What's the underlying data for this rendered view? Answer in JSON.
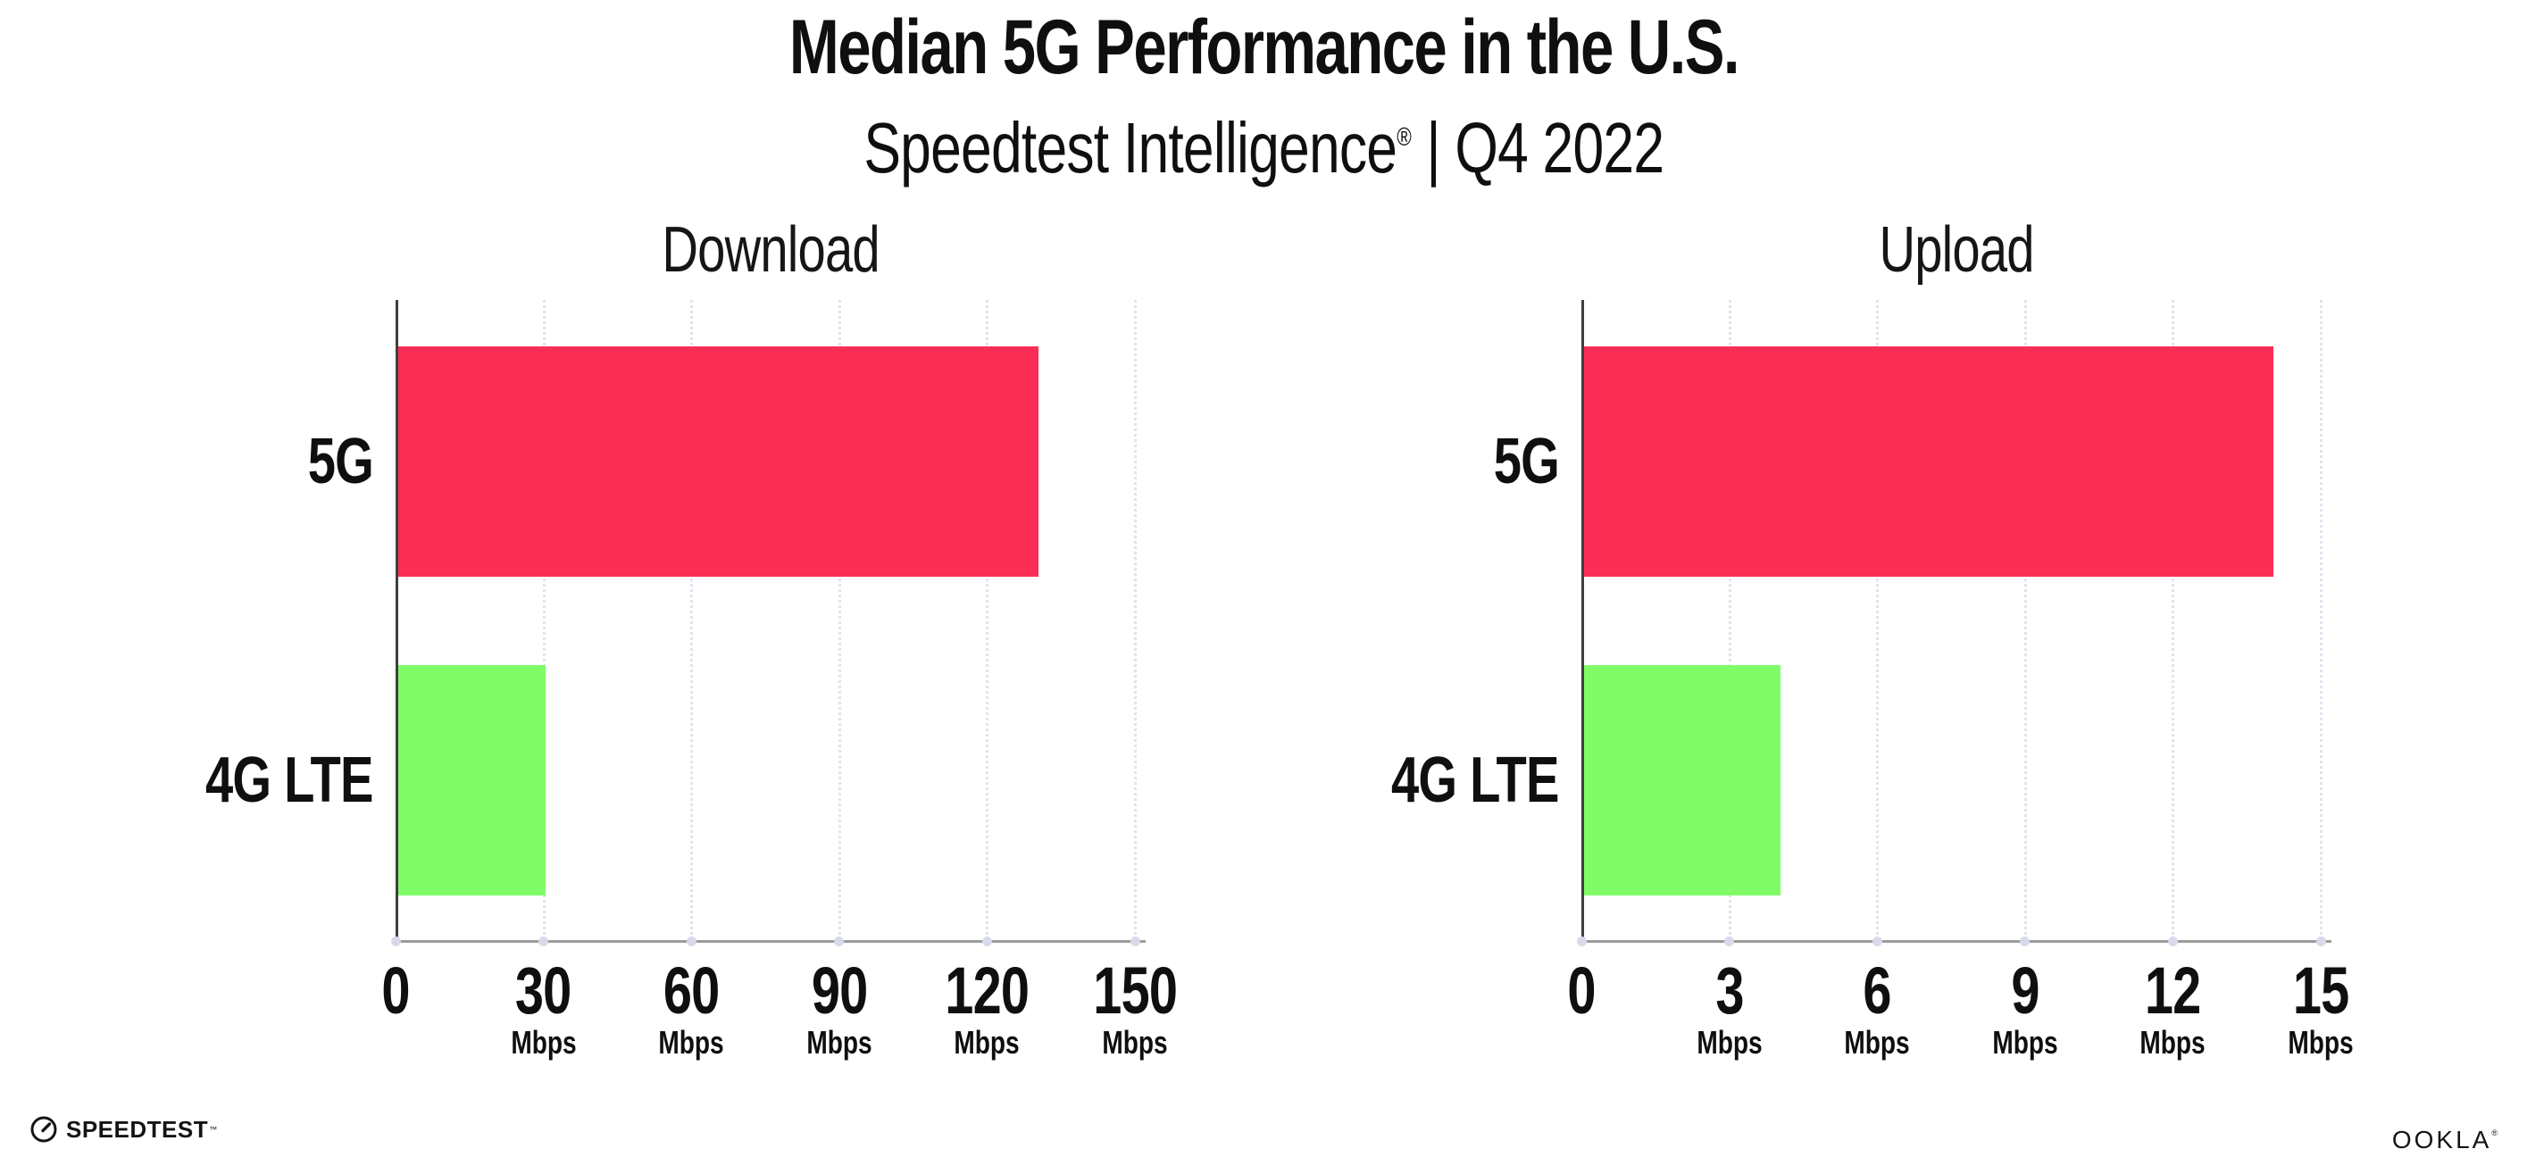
{
  "header": {
    "title": "Median 5G Performance in the U.S.",
    "subtitle_brand": "Speedtest Intelligence",
    "subtitle_reg": "®",
    "subtitle_rest": " | Q4 2022"
  },
  "colors": {
    "bar_5g": "#FC2D55",
    "bar_4g_lte": "#80FC66",
    "gridline": "#E2E3F0",
    "x_axis_line": "#9B9B9B",
    "y_axis_line": "#3F3F3F",
    "tick_dot": "#D8DAEB",
    "text": "#0F0F0F"
  },
  "chart_data": [
    {
      "type": "bar",
      "orientation": "horizontal",
      "title": "Download",
      "categories": [
        "5G",
        "4G LTE"
      ],
      "values": [
        130,
        30
      ],
      "unit": "Mbps",
      "xlim": [
        0,
        150
      ],
      "ticks": [
        0,
        30,
        60,
        90,
        120,
        150
      ],
      "tick_unit_label": "Mbps",
      "bar_colors": [
        "#FC2D55",
        "#80FC66"
      ],
      "grid": "vertical-dotted",
      "legend": "none"
    },
    {
      "type": "bar",
      "orientation": "horizontal",
      "title": "Upload",
      "categories": [
        "5G",
        "4G LTE"
      ],
      "values": [
        14,
        4
      ],
      "unit": "Mbps",
      "xlim": [
        0,
        15
      ],
      "ticks": [
        0,
        3,
        6,
        9,
        12,
        15
      ],
      "tick_unit_label": "Mbps",
      "bar_colors": [
        "#FC2D55",
        "#80FC66"
      ],
      "grid": "vertical-dotted",
      "legend": "none"
    }
  ],
  "footer": {
    "speedtest_logo_text": "SPEEDTEST",
    "speedtest_tm": "™",
    "ookla_logo_text": "OOKLA",
    "ookla_reg": "®"
  }
}
